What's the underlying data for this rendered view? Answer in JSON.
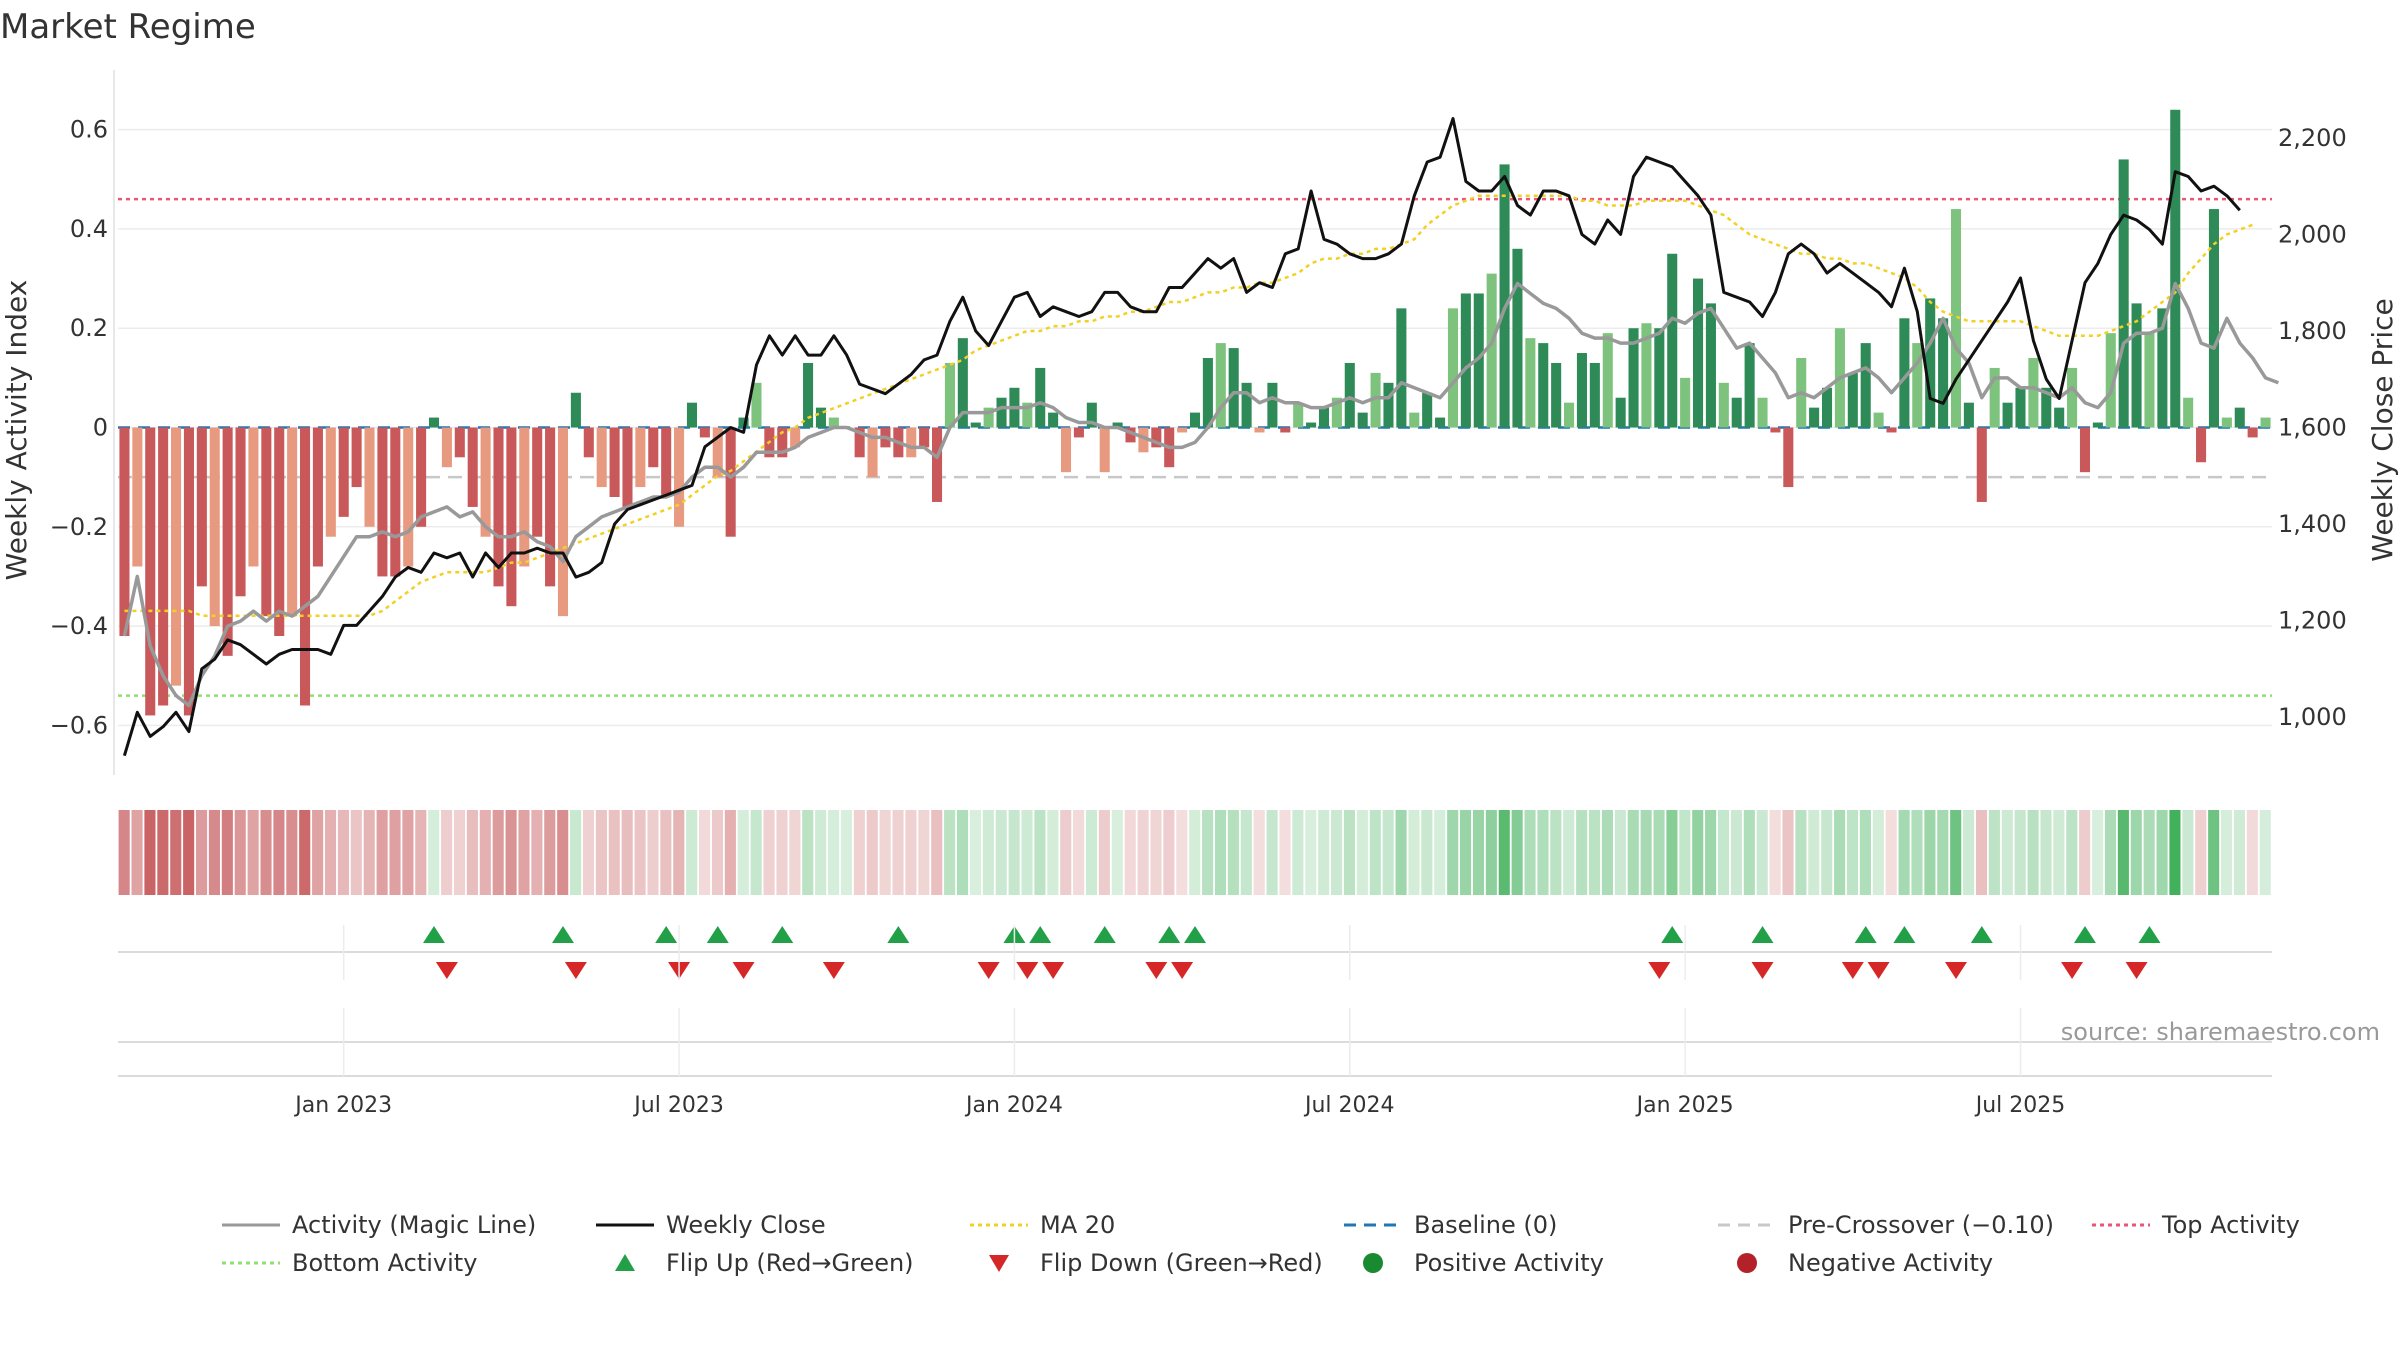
{
  "chart_data": {
    "type": "bar",
    "title": "Market Regime",
    "ylabel": "Weekly Activity Index",
    "y2label": "Weekly Close Price",
    "ylim": [
      -0.7,
      0.7
    ],
    "y2lim": [
      880,
      2320
    ],
    "yticks": [
      {
        "v": 0.6,
        "t": "0.6"
      },
      {
        "v": 0.4,
        "t": "0.4"
      },
      {
        "v": 0.2,
        "t": "0.2"
      },
      {
        "v": 0,
        "t": "0"
      },
      {
        "v": -0.2,
        "t": "−0.2"
      },
      {
        "v": -0.4,
        "t": "−0.4"
      },
      {
        "v": -0.6,
        "t": "−0.6"
      }
    ],
    "y2ticks": [
      {
        "v": 2200,
        "t": "2,200"
      },
      {
        "v": 2000,
        "t": "2,000"
      },
      {
        "v": 1800,
        "t": "1,800"
      },
      {
        "v": 1600,
        "t": "1,600"
      },
      {
        "v": 1400,
        "t": "1,400"
      },
      {
        "v": 1200,
        "t": "1,200"
      },
      {
        "v": 1000,
        "t": "1,000"
      }
    ],
    "xticks": [
      {
        "week": 17,
        "t": "Jan 2023"
      },
      {
        "week": 43,
        "t": "Jul 2023"
      },
      {
        "week": 69,
        "t": "Jan 2024"
      },
      {
        "week": 95,
        "t": "Jul 2024"
      },
      {
        "week": 121,
        "t": "Jan 2025"
      },
      {
        "week": 147,
        "t": "Jul 2025"
      }
    ],
    "weekly_activity": [
      -0.42,
      -0.28,
      -0.58,
      -0.56,
      -0.52,
      -0.58,
      -0.32,
      -0.4,
      -0.46,
      -0.34,
      -0.28,
      -0.38,
      -0.42,
      -0.38,
      -0.56,
      -0.28,
      -0.22,
      -0.18,
      -0.12,
      -0.2,
      -0.3,
      -0.3,
      -0.28,
      -0.2,
      0.02,
      -0.08,
      -0.06,
      -0.16,
      -0.22,
      -0.32,
      -0.36,
      -0.28,
      -0.22,
      -0.32,
      -0.38,
      0.07,
      -0.06,
      -0.12,
      -0.14,
      -0.16,
      -0.12,
      -0.08,
      -0.14,
      -0.2,
      0.05,
      -0.02,
      -0.1,
      -0.22,
      0.02,
      0.09,
      -0.06,
      -0.06,
      -0.04,
      0.13,
      0.04,
      0.02,
      0.0,
      -0.06,
      -0.1,
      -0.04,
      -0.06,
      -0.06,
      -0.04,
      -0.15,
      0.13,
      0.18,
      0.01,
      0.04,
      0.06,
      0.08,
      0.05,
      0.12,
      0.03,
      -0.09,
      -0.02,
      0.05,
      -0.09,
      0.01,
      -0.03,
      -0.05,
      -0.04,
      -0.08,
      -0.01,
      0.03,
      0.14,
      0.17,
      0.16,
      0.09,
      -0.01,
      0.09,
      -0.01,
      0.05,
      0.01,
      0.04,
      0.06,
      0.13,
      0.03,
      0.11,
      0.09,
      0.24,
      0.03,
      0.07,
      0.02,
      0.24,
      0.27,
      0.27,
      0.31,
      0.53,
      0.36,
      0.18,
      0.17,
      0.13,
      0.05,
      0.15,
      0.13,
      0.19,
      0.06,
      0.2,
      0.21,
      0.2,
      0.35,
      0.1,
      0.3,
      0.25,
      0.09,
      0.06,
      0.17,
      0.06,
      -0.01,
      -0.12,
      0.14,
      0.04,
      0.08,
      0.2,
      0.11,
      0.17,
      0.03,
      -0.01,
      0.22,
      0.17,
      0.26,
      0.22,
      0.44,
      0.05,
      -0.15,
      0.12,
      0.05,
      0.08,
      0.14,
      0.08,
      0.04,
      0.12,
      -0.09,
      0.01,
      0.19,
      0.54,
      0.25,
      0.19,
      0.24,
      0.64,
      0.06,
      -0.07,
      0.44,
      0.02,
      0.04,
      -0.02,
      0.02
    ],
    "magic_line": [
      -0.42,
      -0.3,
      -0.44,
      -0.5,
      -0.54,
      -0.56,
      -0.5,
      -0.46,
      -0.4,
      -0.39,
      -0.37,
      -0.39,
      -0.37,
      -0.38,
      -0.36,
      -0.34,
      -0.3,
      -0.26,
      -0.22,
      -0.22,
      -0.21,
      -0.22,
      -0.21,
      -0.18,
      -0.17,
      -0.16,
      -0.18,
      -0.17,
      -0.2,
      -0.22,
      -0.22,
      -0.21,
      -0.23,
      -0.24,
      -0.27,
      -0.22,
      -0.2,
      -0.18,
      -0.17,
      -0.16,
      -0.15,
      -0.14,
      -0.14,
      -0.13,
      -0.1,
      -0.08,
      -0.08,
      -0.1,
      -0.08,
      -0.05,
      -0.05,
      -0.05,
      -0.04,
      -0.02,
      -0.01,
      0.0,
      0.0,
      -0.01,
      -0.02,
      -0.02,
      -0.03,
      -0.04,
      -0.04,
      -0.06,
      0.0,
      0.03,
      0.03,
      0.03,
      0.04,
      0.04,
      0.04,
      0.05,
      0.04,
      0.02,
      0.01,
      0.01,
      0.0,
      0.0,
      -0.01,
      -0.02,
      -0.03,
      -0.04,
      -0.04,
      -0.03,
      0.0,
      0.04,
      0.07,
      0.07,
      0.05,
      0.06,
      0.05,
      0.05,
      0.04,
      0.04,
      0.05,
      0.06,
      0.05,
      0.06,
      0.06,
      0.09,
      0.08,
      0.07,
      0.06,
      0.09,
      0.12,
      0.14,
      0.17,
      0.24,
      0.29,
      0.27,
      0.25,
      0.24,
      0.22,
      0.19,
      0.18,
      0.18,
      0.17,
      0.17,
      0.18,
      0.19,
      0.22,
      0.21,
      0.23,
      0.24,
      0.2,
      0.16,
      0.17,
      0.14,
      0.11,
      0.06,
      0.07,
      0.06,
      0.08,
      0.1,
      0.11,
      0.12,
      0.1,
      0.07,
      0.1,
      0.13,
      0.17,
      0.22,
      0.16,
      0.13,
      0.06,
      0.1,
      0.1,
      0.08,
      0.08,
      0.07,
      0.06,
      0.08,
      0.05,
      0.04,
      0.07,
      0.17,
      0.19,
      0.19,
      0.2,
      0.29,
      0.24,
      0.17,
      0.16,
      0.22,
      0.17,
      0.14,
      0.1,
      0.09
    ],
    "weekly_close": [
      920,
      1010,
      960,
      980,
      1010,
      970,
      1100,
      1120,
      1160,
      1150,
      1130,
      1110,
      1130,
      1140,
      1140,
      1140,
      1130,
      1190,
      1190,
      1220,
      1250,
      1290,
      1310,
      1300,
      1340,
      1330,
      1340,
      1290,
      1340,
      1310,
      1340,
      1340,
      1350,
      1340,
      1340,
      1290,
      1300,
      1320,
      1400,
      1430,
      1440,
      1450,
      1460,
      1470,
      1480,
      1560,
      1580,
      1600,
      1590,
      1730,
      1790,
      1750,
      1790,
      1750,
      1750,
      1790,
      1750,
      1690,
      1680,
      1670,
      1690,
      1710,
      1740,
      1750,
      1820,
      1870,
      1800,
      1770,
      1820,
      1870,
      1880,
      1830,
      1850,
      1840,
      1830,
      1840,
      1880,
      1880,
      1850,
      1840,
      1840,
      1890,
      1890,
      1920,
      1950,
      1930,
      1950,
      1880,
      1900,
      1890,
      1960,
      1970,
      2090,
      1990,
      1980,
      1960,
      1950,
      1950,
      1960,
      1980,
      2080,
      2150,
      2160,
      2240,
      2110,
      2090,
      2090,
      2120,
      2060,
      2040,
      2090,
      2090,
      2080,
      2000,
      1980,
      2030,
      2000,
      2120,
      2160,
      2150,
      2140,
      2110,
      2080,
      2040,
      1880,
      1870,
      1860,
      1830,
      1880,
      1960,
      1980,
      1960,
      1920,
      1940,
      1920,
      1900,
      1880,
      1850,
      1930,
      1840,
      1660,
      1650,
      1700,
      1740,
      1780,
      1820,
      1860,
      1910,
      1780,
      1700,
      1660,
      1780,
      1900,
      1940,
      2000,
      2040,
      2030,
      2010,
      1980,
      2130,
      2120,
      2090,
      2100,
      2080,
      2050
    ],
    "ma20": [
      1220,
      1220,
      1220,
      1220,
      1220,
      1220,
      1210,
      1210,
      1210,
      1210,
      1210,
      1210,
      1210,
      1210,
      1210,
      1210,
      1210,
      1210,
      1210,
      1210,
      1220,
      1240,
      1260,
      1280,
      1290,
      1300,
      1300,
      1300,
      1300,
      1310,
      1320,
      1320,
      1330,
      1340,
      1350,
      1360,
      1370,
      1380,
      1390,
      1400,
      1410,
      1420,
      1430,
      1440,
      1460,
      1480,
      1500,
      1510,
      1530,
      1550,
      1570,
      1590,
      1600,
      1620,
      1630,
      1640,
      1650,
      1660,
      1670,
      1680,
      1690,
      1700,
      1710,
      1720,
      1730,
      1740,
      1760,
      1770,
      1780,
      1790,
      1800,
      1800,
      1810,
      1810,
      1820,
      1820,
      1830,
      1830,
      1840,
      1840,
      1850,
      1860,
      1860,
      1870,
      1880,
      1880,
      1890,
      1890,
      1900,
      1900,
      1910,
      1920,
      1940,
      1950,
      1950,
      1960,
      1960,
      1970,
      1970,
      1980,
      1990,
      2020,
      2040,
      2060,
      2070,
      2080,
      2080,
      2080,
      2080,
      2080,
      2080,
      2080,
      2080,
      2070,
      2070,
      2060,
      2060,
      2060,
      2070,
      2070,
      2070,
      2070,
      2060,
      2050,
      2040,
      2020,
      2000,
      1990,
      1980,
      1970,
      1960,
      1960,
      1950,
      1950,
      1940,
      1940,
      1930,
      1920,
      1910,
      1890,
      1860,
      1840,
      1830,
      1820,
      1820,
      1820,
      1820,
      1820,
      1810,
      1800,
      1790,
      1790,
      1790,
      1790,
      1800,
      1810,
      1820,
      1840,
      1860,
      1880,
      1920,
      1950,
      1980,
      2000,
      2010,
      2020
    ],
    "top_activity": 0.46,
    "bottom_activity": -0.54,
    "pre_crossover": -0.1,
    "baseline": 0,
    "flip_up_weeks": [
      24,
      34,
      42,
      46,
      51,
      60,
      69,
      71,
      76,
      81,
      83,
      120,
      127,
      135,
      138,
      144,
      152,
      157
    ],
    "flip_down_weeks": [
      25,
      35,
      43,
      48,
      55,
      67,
      70,
      72,
      80,
      82,
      119,
      127,
      134,
      136,
      142,
      151,
      156
    ]
  },
  "legend": {
    "items": [
      {
        "label": "Activity (Magic Line)",
        "kind": "line",
        "color": "#999999",
        "dash": ""
      },
      {
        "label": "Weekly Close",
        "kind": "line",
        "color": "#111111",
        "dash": ""
      },
      {
        "label": "MA 20",
        "kind": "line",
        "color": "#f2d024",
        "dash": "4,4"
      },
      {
        "label": "Baseline (0)",
        "kind": "line",
        "color": "#1f77b4",
        "dash": "12,8"
      },
      {
        "label": "Pre-Crossover (−0.10)",
        "kind": "line",
        "color": "#c8c8c8",
        "dash": "12,8"
      },
      {
        "label": "Top Activity",
        "kind": "line",
        "color": "#e8567a",
        "dash": "4,4"
      },
      {
        "label": "Bottom Activity",
        "kind": "line",
        "color": "#90e070",
        "dash": "4,4"
      },
      {
        "label": "Flip Up (Red→Green)",
        "kind": "tri-up",
        "color": "#22a048",
        "dash": ""
      },
      {
        "label": "Flip Down (Green→Red)",
        "kind": "tri-down",
        "color": "#d62728",
        "dash": ""
      },
      {
        "label": "Positive Activity",
        "kind": "dot",
        "color": "#1a8a30",
        "dash": ""
      },
      {
        "label": "Negative Activity",
        "kind": "dot",
        "color": "#b22228",
        "dash": ""
      }
    ]
  },
  "source": "source: sharemaestro.com",
  "colors": {
    "pos_strong": "#2e8b57",
    "pos_weak": "#7dc27d",
    "neg_strong": "#c9585a",
    "neg_weak": "#e89a80",
    "close": "#111111",
    "magic": "#999999",
    "ma20": "#f2d024"
  }
}
